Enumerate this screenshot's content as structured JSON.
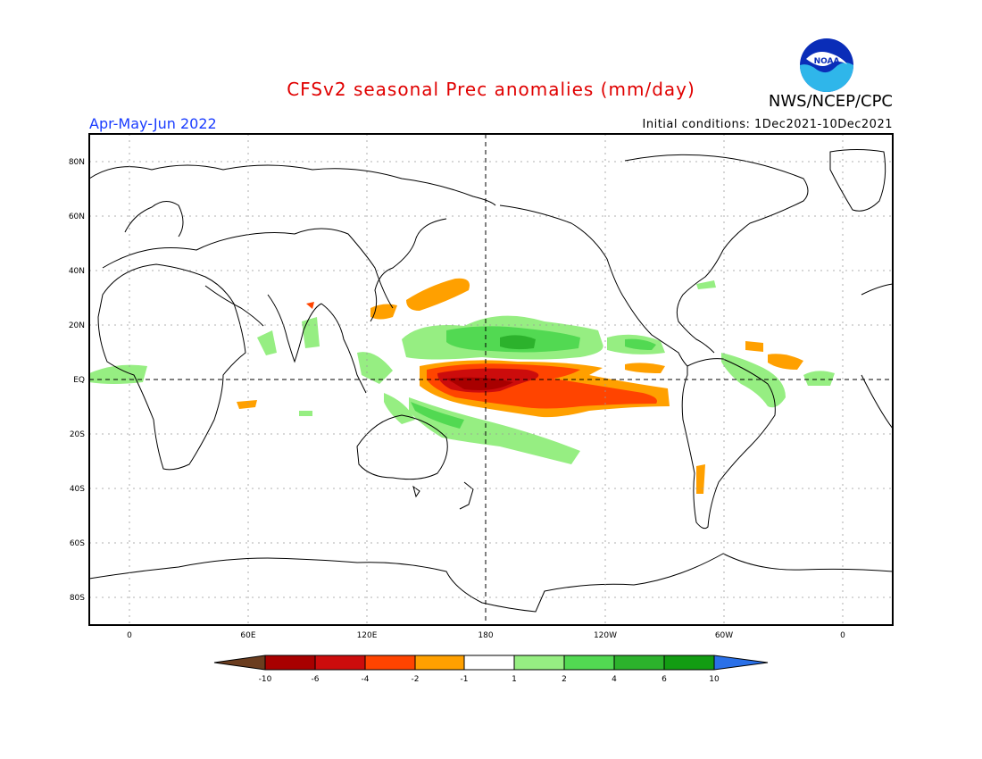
{
  "header": {
    "title": "CFSv2 seasonal Prec anomalies (mm/day)",
    "agency": "NWS/NCEP/CPC",
    "season": "Apr-May-Jun 2022",
    "initial_conditions": "Initial conditions: 1Dec2021-10Dec2021",
    "logo_text": "NOAA"
  },
  "map": {
    "lat_labels": [
      "80N",
      "60N",
      "40N",
      "20N",
      "EQ",
      "20S",
      "40S",
      "60S",
      "80S"
    ],
    "lon_labels": [
      "0",
      "60E",
      "120E",
      "180",
      "120W",
      "60W",
      "0"
    ]
  },
  "colorbar": {
    "tick_labels": [
      "-10",
      "-6",
      "-4",
      "-2",
      "-1",
      "1",
      "2",
      "4",
      "6",
      "10"
    ],
    "colors": {
      "lt_-10": "#6b3d1f",
      "-10_-6": "#a80000",
      "-6_-4": "#cc0c0c",
      "-4_-2": "#ff4400",
      "-2_-1": "#ffa000",
      "-1_1": "#ffffff",
      "1_2": "#96ee82",
      "2_4": "#52d952",
      "4_6": "#2cb22c",
      "6_10": "#129c12",
      "gt_10": "#2a70e8"
    }
  }
}
